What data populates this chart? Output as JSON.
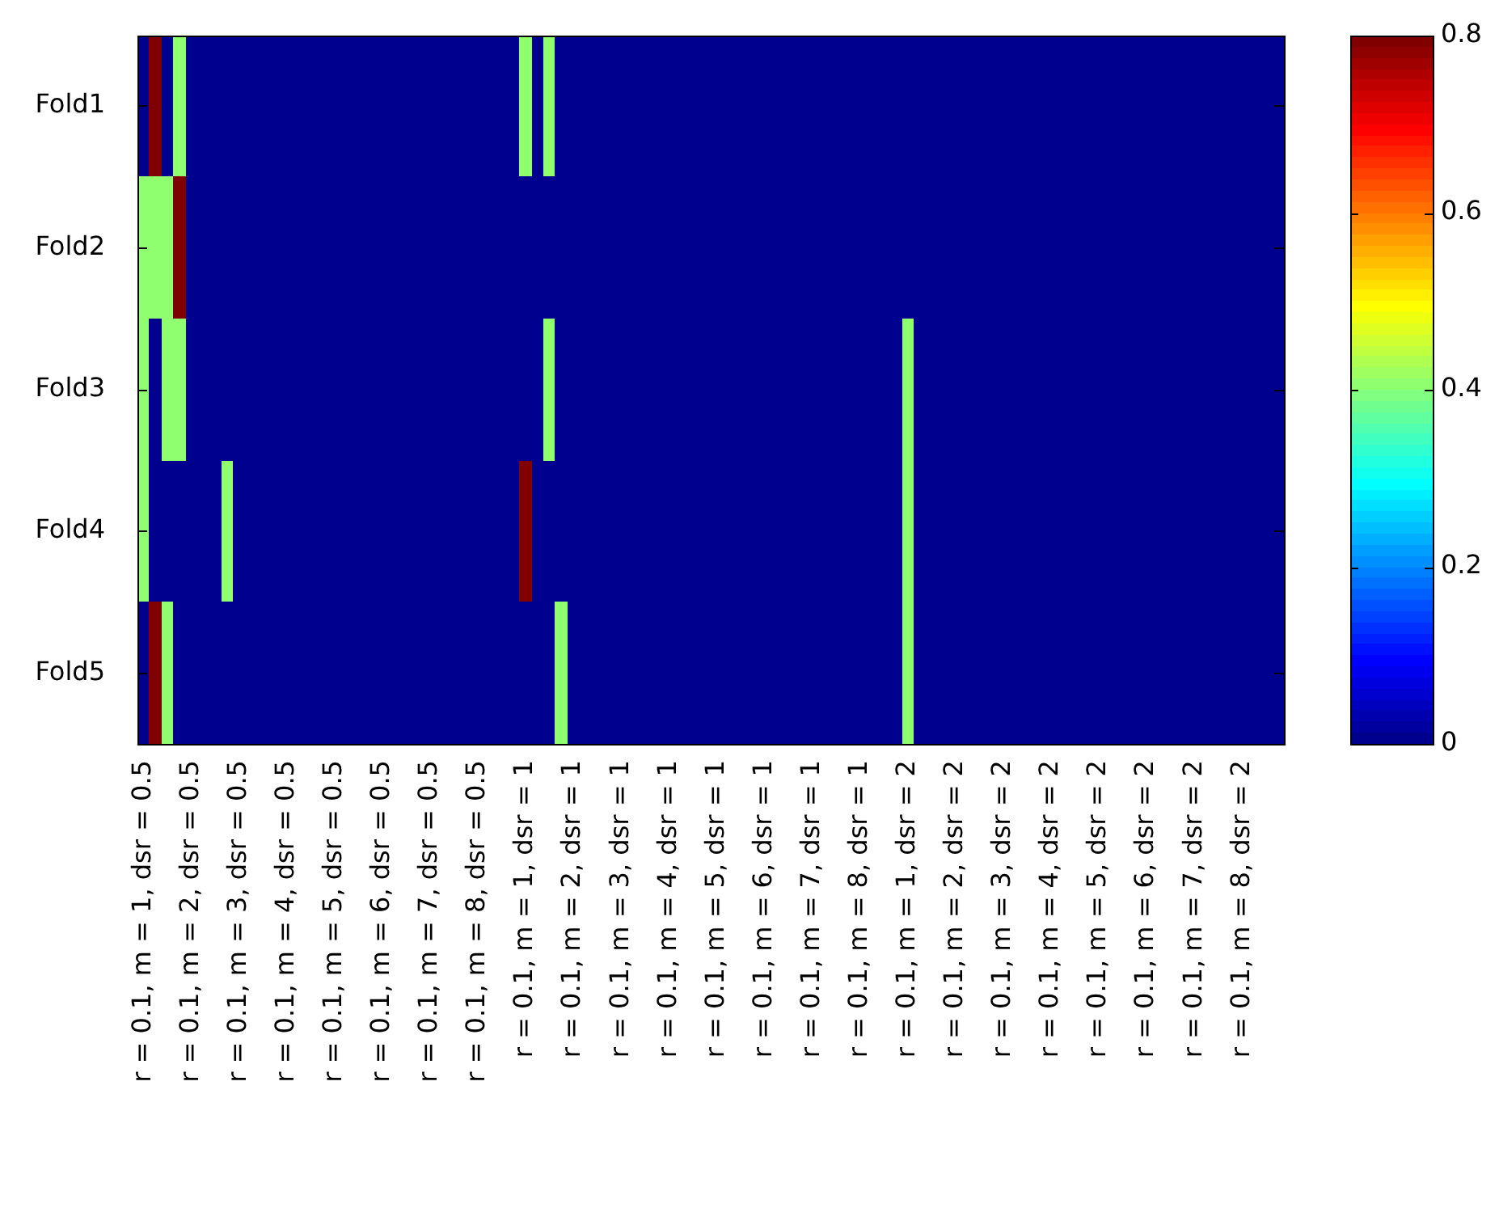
{
  "chart_data": {
    "type": "heatmap",
    "categories": [
      "r = 0.1, m = 1, dsr = 0.5",
      null,
      null,
      null,
      "r = 0.1, m = 2, dsr = 0.5",
      null,
      null,
      null,
      "r = 0.1, m = 3, dsr = 0.5",
      null,
      null,
      null,
      "r = 0.1, m = 4, dsr = 0.5",
      null,
      null,
      null,
      "r = 0.1, m = 5, dsr = 0.5",
      null,
      null,
      null,
      "r = 0.1, m = 6, dsr = 0.5",
      null,
      null,
      null,
      "r = 0.1, m = 7, dsr = 0.5",
      null,
      null,
      null,
      "r = 0.1, m = 8, dsr = 0.5",
      null,
      null,
      null,
      "r = 0.1, m = 1, dsr = 1",
      null,
      null,
      null,
      "r = 0.1, m = 2, dsr = 1",
      null,
      null,
      null,
      "r = 0.1, m = 3, dsr = 1",
      null,
      null,
      null,
      "r = 0.1, m = 4, dsr = 1",
      null,
      null,
      null,
      "r = 0.1, m = 5, dsr = 1",
      null,
      null,
      null,
      "r = 0.1, m = 6, dsr = 1",
      null,
      null,
      null,
      "r = 0.1, m = 7, dsr = 1",
      null,
      null,
      null,
      "r = 0.1, m = 8, dsr = 1",
      null,
      null,
      null,
      "r = 0.1, m = 1, dsr = 2",
      null,
      null,
      null,
      "r = 0.1, m = 2, dsr = 2",
      null,
      null,
      null,
      "r = 0.1, m = 3, dsr = 2",
      null,
      null,
      null,
      "r = 0.1, m = 4, dsr = 2",
      null,
      null,
      null,
      "r = 0.1, m = 5, dsr = 2",
      null,
      null,
      null,
      "r = 0.1, m = 6, dsr = 2",
      null,
      null,
      null,
      "r = 0.1, m = 7, dsr = 2",
      null,
      null,
      null,
      "r = 0.1, m = 8, dsr = 2",
      null,
      null,
      null
    ],
    "y_categories": [
      "Fold1",
      "Fold2",
      "Fold3",
      "Fold4",
      "Fold5"
    ],
    "cells": [
      [
        0,
        0.8,
        0,
        0.4,
        0,
        0,
        0,
        0,
        0,
        0,
        0,
        0,
        0,
        0,
        0,
        0,
        0,
        0,
        0,
        0,
        0,
        0,
        0,
        0,
        0,
        0,
        0,
        0,
        0,
        0,
        0,
        0,
        0.4,
        0,
        0.4,
        0,
        0,
        0,
        0,
        0,
        0,
        0,
        0,
        0,
        0,
        0,
        0,
        0,
        0,
        0,
        0,
        0,
        0,
        0,
        0,
        0,
        0,
        0,
        0,
        0,
        0,
        0,
        0,
        0,
        0,
        0,
        0,
        0,
        0,
        0,
        0,
        0,
        0,
        0,
        0,
        0,
        0,
        0,
        0,
        0,
        0,
        0,
        0,
        0,
        0,
        0,
        0,
        0,
        0,
        0,
        0,
        0,
        0,
        0,
        0,
        0
      ],
      [
        0.4,
        0.4,
        0.4,
        0.8,
        0,
        0,
        0,
        0,
        0,
        0,
        0,
        0,
        0,
        0,
        0,
        0,
        0,
        0,
        0,
        0,
        0,
        0,
        0,
        0,
        0,
        0,
        0,
        0,
        0,
        0,
        0,
        0,
        0,
        0,
        0,
        0,
        0,
        0,
        0,
        0,
        0,
        0,
        0,
        0,
        0,
        0,
        0,
        0,
        0,
        0,
        0,
        0,
        0,
        0,
        0,
        0,
        0,
        0,
        0,
        0,
        0,
        0,
        0,
        0,
        0,
        0,
        0,
        0,
        0,
        0,
        0,
        0,
        0,
        0,
        0,
        0,
        0,
        0,
        0,
        0,
        0,
        0,
        0,
        0,
        0,
        0,
        0,
        0,
        0,
        0,
        0,
        0,
        0,
        0,
        0,
        0
      ],
      [
        0.4,
        0,
        0.4,
        0.4,
        0,
        0,
        0,
        0,
        0,
        0,
        0,
        0,
        0,
        0,
        0,
        0,
        0,
        0,
        0,
        0,
        0,
        0,
        0,
        0,
        0,
        0,
        0,
        0,
        0,
        0,
        0,
        0,
        0,
        0,
        0.4,
        0,
        0,
        0,
        0,
        0,
        0,
        0,
        0,
        0,
        0,
        0,
        0,
        0,
        0,
        0,
        0,
        0,
        0,
        0,
        0,
        0,
        0,
        0,
        0,
        0,
        0,
        0,
        0,
        0,
        0.4,
        0,
        0,
        0,
        0,
        0,
        0,
        0,
        0,
        0,
        0,
        0,
        0,
        0,
        0,
        0,
        0,
        0,
        0,
        0,
        0,
        0,
        0,
        0,
        0,
        0,
        0,
        0,
        0,
        0,
        0,
        0
      ],
      [
        0.4,
        0,
        0,
        0,
        0,
        0,
        0,
        0.4,
        0,
        0,
        0,
        0,
        0,
        0,
        0,
        0,
        0,
        0,
        0,
        0,
        0,
        0,
        0,
        0,
        0,
        0,
        0,
        0,
        0,
        0,
        0,
        0,
        0.8,
        0,
        0,
        0,
        0,
        0,
        0,
        0,
        0,
        0,
        0,
        0,
        0,
        0,
        0,
        0,
        0,
        0,
        0,
        0,
        0,
        0,
        0,
        0,
        0,
        0,
        0,
        0,
        0,
        0,
        0,
        0,
        0.4,
        0,
        0,
        0,
        0,
        0,
        0,
        0,
        0,
        0,
        0,
        0,
        0,
        0,
        0,
        0,
        0,
        0,
        0,
        0,
        0,
        0,
        0,
        0,
        0,
        0,
        0,
        0,
        0,
        0,
        0,
        0
      ],
      [
        0,
        0.8,
        0.4,
        0,
        0,
        0,
        0,
        0,
        0,
        0,
        0,
        0,
        0,
        0,
        0,
        0,
        0,
        0,
        0,
        0,
        0,
        0,
        0,
        0,
        0,
        0,
        0,
        0,
        0,
        0,
        0,
        0,
        0,
        0,
        0,
        0.4,
        0,
        0,
        0,
        0,
        0,
        0,
        0,
        0,
        0,
        0,
        0,
        0,
        0,
        0,
        0,
        0,
        0,
        0,
        0,
        0,
        0,
        0,
        0,
        0,
        0,
        0,
        0,
        0,
        0.4,
        0,
        0,
        0,
        0,
        0,
        0,
        0,
        0,
        0,
        0,
        0,
        0,
        0,
        0,
        0,
        0,
        0,
        0,
        0,
        0,
        0,
        0,
        0,
        0,
        0,
        0,
        0,
        0,
        0,
        0,
        0
      ]
    ],
    "clim": [
      0,
      0.8
    ],
    "cticks": [
      0,
      0.2,
      0.4,
      0.6,
      0.8
    ]
  }
}
